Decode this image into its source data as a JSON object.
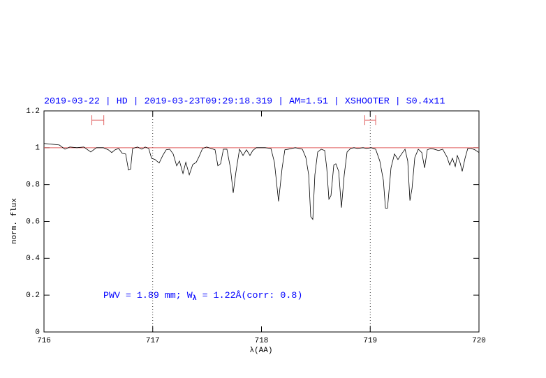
{
  "chart_data": {
    "type": "line",
    "title": "2019-03-22 | HD | 2019-03-23T09:29:18.319 | AM=1.51 | XSHOOTER | S0.4x11",
    "xlabel": "λ(AA)",
    "ylabel": "norm. flux",
    "annotation": [
      "PWV = 1.89 mm; W",
      "λ",
      " = 1.22Å(corr: 0.8)"
    ],
    "color": "#000000",
    "title_color": "#0000ff",
    "x": [
      716.0,
      716.077,
      716.141,
      716.193,
      716.238,
      716.302,
      716.366,
      716.43,
      716.482,
      716.546,
      716.591,
      716.623,
      716.655,
      716.687,
      716.719,
      716.751,
      716.777,
      716.796,
      716.815,
      716.86,
      716.899,
      716.931,
      716.963,
      716.989,
      717.021,
      717.059,
      717.092,
      717.124,
      717.156,
      717.188,
      717.22,
      717.246,
      717.278,
      717.304,
      717.336,
      717.368,
      717.4,
      717.425,
      717.458,
      717.496,
      717.535,
      717.573,
      717.599,
      717.624,
      717.65,
      717.682,
      717.714,
      717.74,
      717.766,
      717.798,
      717.83,
      717.862,
      717.894,
      717.92,
      717.952,
      717.991,
      718.035,
      718.087,
      718.119,
      718.157,
      718.19,
      718.215,
      718.247,
      718.279,
      718.311,
      718.344,
      718.376,
      718.408,
      718.434,
      718.453,
      718.472,
      718.491,
      718.517,
      718.549,
      718.581,
      718.6,
      718.62,
      718.639,
      718.665,
      718.684,
      718.71,
      718.735,
      718.761,
      718.787,
      718.819,
      718.851,
      718.883,
      718.934,
      718.966,
      719.011,
      719.05,
      719.088,
      719.121,
      719.14,
      719.159,
      719.191,
      719.223,
      719.255,
      719.288,
      719.32,
      719.345,
      719.365,
      719.384,
      719.41,
      719.442,
      719.474,
      719.5,
      719.525,
      719.557,
      719.589,
      719.628,
      719.666,
      719.705,
      719.731,
      719.756,
      719.782,
      719.801,
      719.827,
      719.846,
      719.872,
      719.897,
      719.93,
      719.962,
      720.0
    ],
    "values": [
      1.023,
      1.019,
      1.015,
      0.992,
      1.004,
      1.0,
      1.004,
      0.977,
      1.0,
      1.0,
      0.989,
      0.974,
      0.989,
      0.996,
      0.97,
      0.966,
      0.879,
      0.883,
      0.996,
      1.004,
      0.992,
      1.004,
      0.996,
      0.943,
      0.936,
      0.917,
      0.958,
      0.989,
      0.992,
      0.966,
      0.902,
      0.928,
      0.86,
      0.921,
      0.853,
      0.909,
      0.921,
      0.951,
      0.996,
      1.004,
      0.996,
      0.989,
      0.902,
      0.913,
      0.992,
      0.992,
      0.891,
      0.755,
      0.872,
      0.992,
      0.958,
      0.989,
      0.958,
      0.985,
      1.0,
      1.0,
      1.0,
      0.996,
      0.921,
      0.709,
      0.891,
      0.989,
      0.992,
      0.996,
      1.0,
      0.996,
      0.992,
      0.947,
      0.853,
      0.626,
      0.611,
      0.853,
      0.977,
      0.992,
      0.985,
      0.891,
      0.721,
      0.74,
      0.906,
      0.913,
      0.872,
      0.675,
      0.853,
      0.977,
      0.996,
      1.0,
      0.996,
      1.0,
      0.996,
      1.0,
      0.992,
      0.928,
      0.823,
      0.672,
      0.672,
      0.891,
      0.966,
      0.936,
      0.966,
      0.992,
      0.928,
      0.713,
      0.777,
      0.947,
      0.992,
      0.974,
      0.891,
      0.989,
      0.996,
      0.992,
      0.985,
      0.992,
      0.951,
      0.906,
      0.943,
      0.898,
      0.958,
      0.917,
      0.872,
      0.943,
      0.996,
      0.996,
      0.989,
      0.974
    ],
    "hline": 1,
    "hline_color": "#e06060",
    "vlines": [
      717,
      719
    ],
    "markers": [
      {
        "x": [
          716.44,
          716.55
        ],
        "y": 1.15
      },
      {
        "x": [
          718.95,
          719.05
        ],
        "y": 1.15
      }
    ],
    "marker_color": "#e06060",
    "xlim": [
      716,
      720
    ],
    "ylim": [
      0,
      1.2
    ],
    "xticks": [
      716,
      717,
      718,
      719,
      720
    ],
    "yticks": [
      0,
      0.2,
      0.4,
      0.6,
      0.8,
      1,
      1.2
    ]
  }
}
